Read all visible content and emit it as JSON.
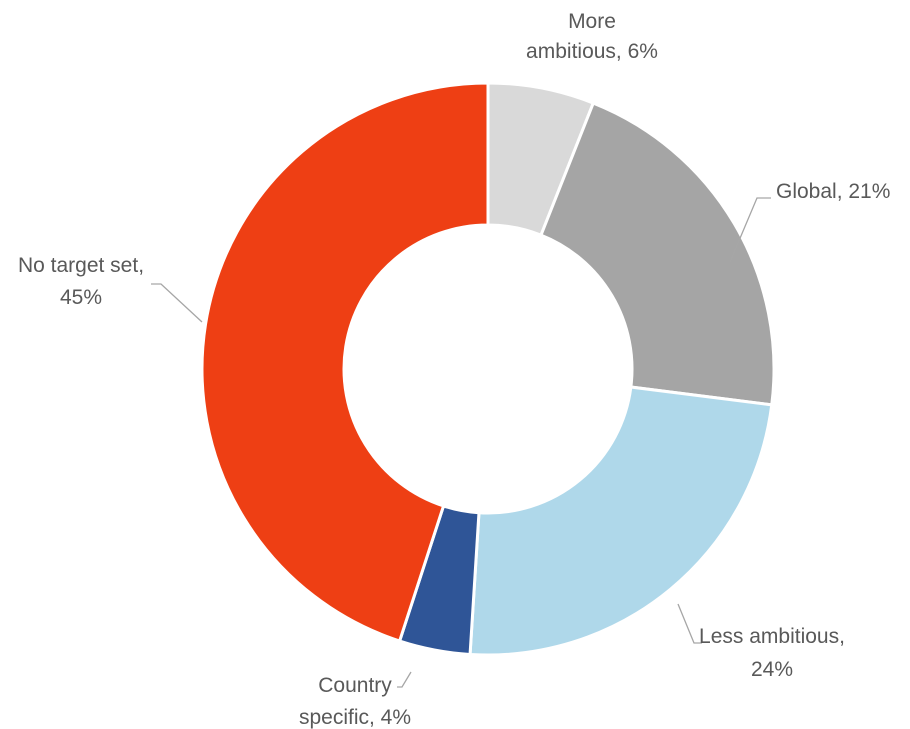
{
  "chart_data": {
    "type": "pie",
    "variant": "donut",
    "title": "",
    "categories": [
      "More ambitious",
      "Global",
      "Less ambitious",
      "Country specific",
      "No target set"
    ],
    "values": [
      6,
      21,
      24,
      4,
      45
    ],
    "value_unit": "%",
    "colors": [
      "#d9d9d9",
      "#a5a5a5",
      "#afd8ea",
      "#2f5597",
      "#ee3f14"
    ],
    "legend": "none",
    "data_labels": [
      {
        "lines": [
          "More",
          "ambitious, 6%"
        ]
      },
      {
        "lines": [
          "Global, 21%"
        ]
      },
      {
        "lines": [
          "Less ambitious,",
          "24%"
        ]
      },
      {
        "lines": [
          "Country",
          "specific, 4%"
        ]
      },
      {
        "lines": [
          "No target set,",
          "45%"
        ]
      }
    ]
  }
}
